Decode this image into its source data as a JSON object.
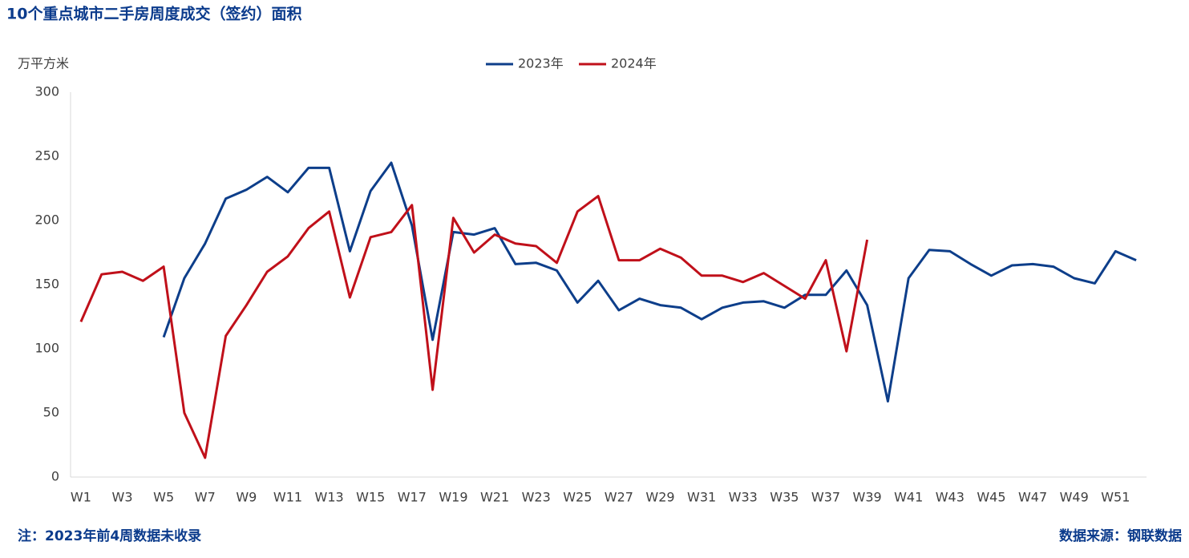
{
  "chart_data": {
    "type": "line",
    "title": "10个重点城市二手房周度成交（签约）面积",
    "y_label": "万平方米",
    "note": "注：2023年前4周数据未收录",
    "source": "数据来源：钢联数据",
    "categories": [
      "W1",
      null,
      "W3",
      null,
      "W5",
      null,
      "W7",
      null,
      "W9",
      null,
      "W11",
      null,
      "W13",
      null,
      "W15",
      null,
      "W17",
      null,
      "W19",
      null,
      "W21",
      null,
      "W23",
      null,
      "W25",
      null,
      "W27",
      null,
      "W29",
      null,
      "W31",
      null,
      "W33",
      null,
      "W35",
      null,
      "W37",
      null,
      "W39",
      null,
      "W41",
      null,
      "W43",
      null,
      "W45",
      null,
      "W47",
      null,
      "W49",
      null,
      "W51",
      null
    ],
    "series": [
      {
        "name": "2023年",
        "color": "#0d3e8a",
        "values": [
          null,
          null,
          null,
          null,
          109,
          155,
          182,
          217,
          224,
          234,
          222,
          241,
          241,
          176,
          223,
          245,
          196,
          107,
          191,
          189,
          194,
          166,
          167,
          161,
          136,
          153,
          130,
          139,
          134,
          132,
          123,
          132,
          136,
          137,
          132,
          142,
          142,
          161,
          134,
          59,
          155,
          177,
          176,
          166,
          157,
          165,
          166,
          164,
          155,
          151,
          176,
          169
        ]
      },
      {
        "name": "2024年",
        "color": "#c0101a",
        "values": [
          121,
          158,
          160,
          153,
          164,
          50,
          15,
          110,
          134,
          160,
          172,
          194,
          207,
          140,
          187,
          191,
          212,
          68,
          202,
          175,
          189,
          182,
          180,
          167,
          207,
          219,
          169,
          169,
          178,
          171,
          157,
          157,
          152,
          159,
          149,
          139,
          169,
          98,
          185,
          null,
          null,
          null,
          null,
          null,
          null,
          null,
          null,
          null,
          null,
          null,
          null,
          null
        ]
      }
    ],
    "ylim": [
      0,
      300
    ],
    "yticks": [
      0,
      50,
      100,
      150,
      200,
      250,
      300
    ],
    "grid": false,
    "legend": "top"
  }
}
